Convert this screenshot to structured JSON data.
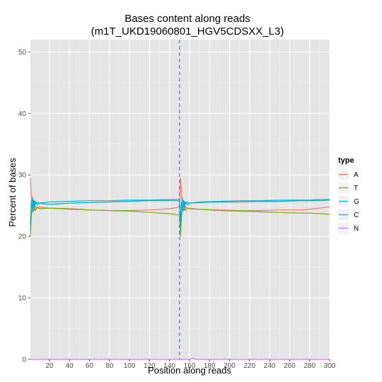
{
  "chart_data": {
    "type": "line",
    "title_line1": "Bases content along reads",
    "title_line2": "(m1T_UKD19060801_HGV5CDSXX_L3)",
    "xlabel": "Position along reads",
    "ylabel": "Percent of bases",
    "xlim": [
      1,
      300
    ],
    "ylim": [
      0,
      52
    ],
    "x_ticks": [
      20,
      40,
      60,
      80,
      100,
      120,
      140,
      160,
      180,
      200,
      220,
      240,
      260,
      280,
      300
    ],
    "y_ticks": [
      0,
      10,
      20,
      30,
      40,
      50
    ],
    "grid": true,
    "legend_position": "right",
    "legend_title": "type",
    "read_boundary_x": 150,
    "series": [
      {
        "name": "A",
        "color": "#F8766D",
        "x": [
          1,
          2,
          3,
          4,
          5,
          6,
          8,
          10,
          20,
          40,
          60,
          80,
          100,
          120,
          140,
          148,
          150,
          151,
          152,
          153,
          154,
          155,
          156,
          158,
          160,
          170,
          190,
          210,
          230,
          250,
          270,
          280,
          290,
          300
        ],
        "y": [
          29.5,
          26.5,
          24.8,
          25.5,
          24.2,
          24.9,
          24.6,
          24.8,
          24.6,
          24.4,
          24.3,
          24.2,
          24.2,
          24.3,
          24.5,
          24.7,
          25.0,
          29.5,
          26.8,
          25.0,
          25.4,
          24.3,
          24.9,
          24.5,
          24.6,
          24.4,
          24.3,
          24.2,
          24.2,
          24.3,
          24.3,
          24.4,
          24.6,
          24.8
        ]
      },
      {
        "name": "T",
        "color": "#7CAE00",
        "x": [
          1,
          2,
          3,
          4,
          5,
          6,
          8,
          10,
          20,
          40,
          60,
          80,
          100,
          120,
          140,
          148,
          150,
          151,
          152,
          153,
          154,
          155,
          156,
          158,
          160,
          170,
          190,
          210,
          230,
          250,
          270,
          280,
          290,
          300
        ],
        "y": [
          20.0,
          23.5,
          24.5,
          24.0,
          25.3,
          24.2,
          24.8,
          24.5,
          24.6,
          24.5,
          24.3,
          24.2,
          24.1,
          23.9,
          23.7,
          23.5,
          23.3,
          20.0,
          23.2,
          24.5,
          24.2,
          25.1,
          24.2,
          24.6,
          24.5,
          24.4,
          24.2,
          24.1,
          24.0,
          23.9,
          23.8,
          23.8,
          23.7,
          23.6
        ]
      },
      {
        "name": "G",
        "color": "#00BFC4",
        "x": [
          1,
          2,
          3,
          4,
          5,
          6,
          8,
          10,
          20,
          40,
          60,
          80,
          100,
          120,
          140,
          148,
          150,
          151,
          152,
          153,
          154,
          155,
          156,
          158,
          160,
          170,
          190,
          210,
          230,
          250,
          270,
          280,
          290,
          300
        ],
        "y": [
          21.0,
          25.0,
          26.4,
          24.6,
          25.8,
          25.2,
          25.6,
          25.4,
          25.6,
          25.7,
          25.8,
          25.8,
          25.9,
          25.9,
          26.0,
          26.0,
          26.0,
          21.0,
          25.4,
          26.2,
          24.8,
          25.7,
          25.3,
          25.6,
          25.4,
          25.6,
          25.7,
          25.8,
          25.8,
          25.9,
          25.9,
          25.9,
          26.0,
          26.0
        ]
      },
      {
        "name": "C",
        "color": "#00A9E0",
        "x": [
          1,
          2,
          3,
          4,
          5,
          6,
          8,
          10,
          20,
          40,
          60,
          80,
          100,
          120,
          140,
          148,
          150,
          151,
          152,
          153,
          154,
          155,
          156,
          158,
          160,
          170,
          190,
          210,
          230,
          250,
          270,
          280,
          290,
          300
        ],
        "y": [
          22.0,
          25.8,
          24.2,
          25.9,
          24.9,
          25.7,
          25.1,
          25.4,
          25.2,
          25.4,
          25.5,
          25.6,
          25.7,
          25.8,
          25.8,
          25.8,
          25.7,
          22.0,
          25.6,
          24.0,
          25.8,
          24.8,
          25.6,
          25.1,
          25.4,
          25.5,
          25.6,
          25.6,
          25.7,
          25.7,
          25.8,
          25.8,
          25.8,
          25.9
        ]
      },
      {
        "name": "N",
        "color": "#C77CFF",
        "x": [
          1,
          50,
          100,
          150,
          160,
          163,
          166,
          170,
          200,
          250,
          300
        ],
        "y": [
          0.0,
          0.0,
          0.0,
          0.0,
          0.0,
          0.15,
          0.0,
          0.0,
          0.0,
          0.0,
          0.0
        ]
      }
    ]
  }
}
